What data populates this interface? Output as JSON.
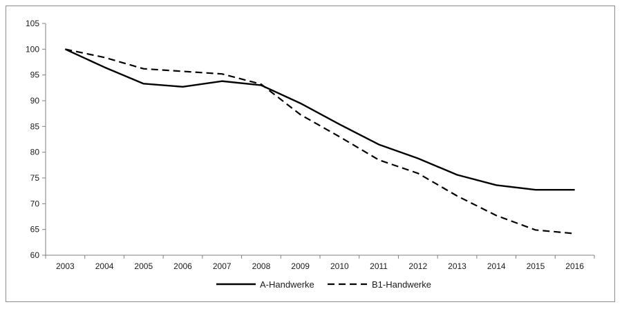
{
  "chart_data": {
    "type": "line",
    "x": [
      2003,
      2004,
      2005,
      2006,
      2007,
      2008,
      2009,
      2010,
      2011,
      2012,
      2013,
      2014,
      2015,
      2016
    ],
    "series": [
      {
        "name": "A-Handwerke",
        "values": [
          100,
          96.5,
          93.3,
          92.7,
          93.8,
          93.0,
          89.5,
          85.4,
          81.5,
          78.8,
          75.6,
          73.6,
          72.7,
          72.7
        ],
        "style": "solid",
        "color": "#000000"
      },
      {
        "name": "B1-Handwerke",
        "values": [
          100,
          98.4,
          96.2,
          95.7,
          95.2,
          93.2,
          87.3,
          83.0,
          78.5,
          75.9,
          71.5,
          67.7,
          64.9,
          64.2
        ],
        "style": "dashed",
        "color": "#000000"
      }
    ],
    "title": "",
    "xlabel": "",
    "ylabel": "",
    "ylim": [
      60,
      105
    ],
    "yticks": [
      60,
      65,
      70,
      75,
      80,
      85,
      90,
      95,
      100,
      105
    ],
    "grid": false,
    "legend": "bottom-center"
  }
}
